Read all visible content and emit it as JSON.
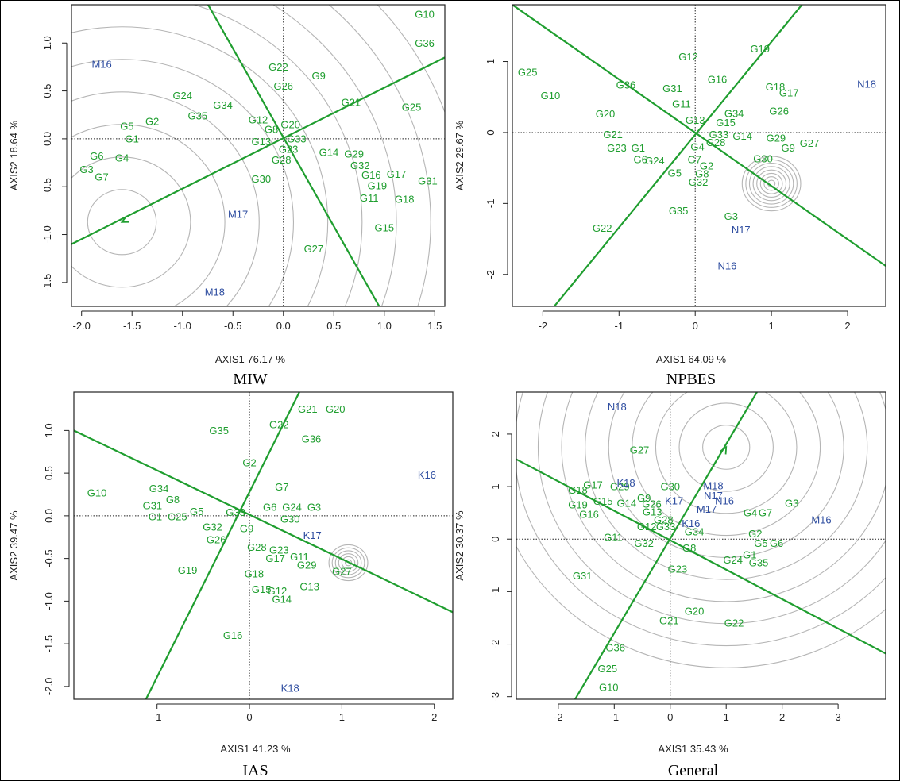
{
  "colors": {
    "genotype": "#1f9e2f",
    "environment": "#2e4da0",
    "line": "#1f9e2f",
    "circle": "#b5b5b5",
    "axis": "#222222"
  },
  "chart_data": [
    {
      "type": "scatter",
      "caption": "MIW",
      "xlabel": "AXIS1 76.17 %",
      "ylabel": "AXIS2 18.64 %",
      "xlim": [
        -2.1,
        1.6
      ],
      "ylim": [
        -1.75,
        1.4
      ],
      "xticks": [
        -2.0,
        -1.5,
        -1.0,
        -0.5,
        0.0,
        0.5,
        1.0,
        1.5
      ],
      "xtick_labels": [
        "-2.0",
        "-1.5",
        "-1.0",
        "-0.5",
        "0.0",
        "0.5",
        "1.0",
        "1.5"
      ],
      "yticks": [
        -1.5,
        -1.0,
        -0.5,
        0.0,
        0.5,
        1.0
      ],
      "ytick_labels": [
        "-1.5",
        "-1.0",
        "-0.5",
        "0.0",
        "0.5",
        "1.0"
      ],
      "center": [
        -1.6,
        -0.87
      ],
      "lines": [
        {
          "points": [
            [
              -2.1,
              -1.1
            ],
            [
              1.6,
              0.85
            ]
          ]
        },
        {
          "points": [
            [
              -0.8,
              1.5
            ],
            [
              0.95,
              -1.75
            ]
          ]
        }
      ],
      "arrow": {
        "from": [
          -1.45,
          -0.79
        ],
        "to": [
          -1.6,
          -0.87
        ]
      },
      "circles": {
        "count": 10,
        "step": 0.34
      },
      "environments": [
        {
          "label": "M16",
          "x": -1.8,
          "y": 0.78
        },
        {
          "label": "M17",
          "x": -0.45,
          "y": -0.79
        },
        {
          "label": "M18",
          "x": -0.68,
          "y": -1.6
        }
      ],
      "genotypes": [
        {
          "label": "G1",
          "x": -1.5,
          "y": 0.0
        },
        {
          "label": "G2",
          "x": -1.3,
          "y": 0.18
        },
        {
          "label": "G3",
          "x": -1.95,
          "y": -0.32
        },
        {
          "label": "G4",
          "x": -1.6,
          "y": -0.2
        },
        {
          "label": "G5",
          "x": -1.55,
          "y": 0.13
        },
        {
          "label": "G6",
          "x": -1.85,
          "y": -0.18
        },
        {
          "label": "G7",
          "x": -1.8,
          "y": -0.4
        },
        {
          "label": "G8",
          "x": -0.12,
          "y": 0.1
        },
        {
          "label": "G9",
          "x": 0.35,
          "y": 0.66
        },
        {
          "label": "G10",
          "x": 1.4,
          "y": 1.3
        },
        {
          "label": "G11",
          "x": 0.85,
          "y": -0.62
        },
        {
          "label": "G12",
          "x": -0.25,
          "y": 0.2
        },
        {
          "label": "G13",
          "x": -0.22,
          "y": -0.03
        },
        {
          "label": "G14",
          "x": 0.45,
          "y": -0.14
        },
        {
          "label": "G15",
          "x": 1.0,
          "y": -0.93
        },
        {
          "label": "G16",
          "x": 0.87,
          "y": -0.38
        },
        {
          "label": "G17",
          "x": 1.12,
          "y": -0.37
        },
        {
          "label": "G18",
          "x": 1.2,
          "y": -0.63
        },
        {
          "label": "G19",
          "x": 0.93,
          "y": -0.49
        },
        {
          "label": "G20",
          "x": 0.07,
          "y": 0.15
        },
        {
          "label": "G21",
          "x": 0.67,
          "y": 0.38
        },
        {
          "label": "G22",
          "x": -0.05,
          "y": 0.75
        },
        {
          "label": "G23",
          "x": 0.05,
          "y": -0.11
        },
        {
          "label": "G24",
          "x": -1.0,
          "y": 0.45
        },
        {
          "label": "G25",
          "x": 1.27,
          "y": 0.33
        },
        {
          "label": "G26",
          "x": 0.0,
          "y": 0.55
        },
        {
          "label": "G27",
          "x": 0.3,
          "y": -1.15
        },
        {
          "label": "G28",
          "x": -0.02,
          "y": -0.22
        },
        {
          "label": "G29",
          "x": 0.7,
          "y": -0.16
        },
        {
          "label": "G30",
          "x": -0.22,
          "y": -0.42
        },
        {
          "label": "G31",
          "x": 1.43,
          "y": -0.44
        },
        {
          "label": "G32",
          "x": 0.76,
          "y": -0.28
        },
        {
          "label": "G33",
          "x": 0.13,
          "y": 0.0
        },
        {
          "label": "G34",
          "x": -0.6,
          "y": 0.35
        },
        {
          "label": "G35",
          "x": -0.85,
          "y": 0.24
        },
        {
          "label": "G36",
          "x": 1.4,
          "y": 1.0
        }
      ]
    },
    {
      "type": "scatter",
      "caption": "NPBES",
      "xlabel": "AXIS1 64.09 %",
      "ylabel": "AXIS2 29.67 %",
      "xlim": [
        -2.4,
        2.5
      ],
      "ylim": [
        -2.45,
        1.8
      ],
      "xticks": [
        -2,
        -1,
        0,
        1,
        2
      ],
      "xtick_labels": [
        "-2",
        "-1",
        "0",
        "1",
        "2"
      ],
      "yticks": [
        -2,
        -1,
        0,
        1
      ],
      "ytick_labels": [
        "-2",
        "-1",
        "0",
        "1"
      ],
      "center": [
        1.0,
        -0.72
      ],
      "lines": [
        {
          "points": [
            [
              -2.4,
              1.8
            ],
            [
              2.5,
              -1.88
            ]
          ]
        },
        {
          "points": [
            [
              -1.85,
              -2.45
            ],
            [
              1.4,
              1.8
            ]
          ]
        }
      ],
      "arrow": null,
      "circles": {
        "count": 8,
        "step": 0.048
      },
      "environments": [
        {
          "label": "N16",
          "x": 0.42,
          "y": -1.88
        },
        {
          "label": "N17",
          "x": 0.6,
          "y": -1.37
        },
        {
          "label": "N18",
          "x": 2.25,
          "y": 0.68
        }
      ],
      "genotypes": [
        {
          "label": "G1",
          "x": -0.75,
          "y": -0.22
        },
        {
          "label": "G2",
          "x": 0.15,
          "y": -0.47
        },
        {
          "label": "G3",
          "x": 0.47,
          "y": -1.18
        },
        {
          "label": "G4",
          "x": 0.03,
          "y": -0.2
        },
        {
          "label": "G5",
          "x": -0.27,
          "y": -0.57
        },
        {
          "label": "G6",
          "x": -0.72,
          "y": -0.38
        },
        {
          "label": "G7",
          "x": -0.01,
          "y": -0.38
        },
        {
          "label": "G9",
          "x": 1.22,
          "y": -0.22
        },
        {
          "label": "G10",
          "x": -1.9,
          "y": 0.52
        },
        {
          "label": "G11",
          "x": -0.18,
          "y": 0.4
        },
        {
          "label": "G12",
          "x": -0.09,
          "y": 1.07
        },
        {
          "label": "G13",
          "x": 0.0,
          "y": 0.17
        },
        {
          "label": "G14",
          "x": 0.62,
          "y": -0.05
        },
        {
          "label": "G15",
          "x": 0.4,
          "y": 0.14
        },
        {
          "label": "G16",
          "x": 0.29,
          "y": 0.75
        },
        {
          "label": "G17",
          "x": 1.23,
          "y": 0.56
        },
        {
          "label": "G18",
          "x": 1.05,
          "y": 0.64
        },
        {
          "label": "G19",
          "x": 0.85,
          "y": 1.18
        },
        {
          "label": "G20",
          "x": -1.18,
          "y": 0.26
        },
        {
          "label": "G21",
          "x": -1.08,
          "y": -0.03
        },
        {
          "label": "G22",
          "x": -1.22,
          "y": -1.35
        },
        {
          "label": "G23",
          "x": -1.03,
          "y": -0.22
        },
        {
          "label": "G24",
          "x": -0.53,
          "y": -0.4
        },
        {
          "label": "G25",
          "x": -2.2,
          "y": 0.85
        },
        {
          "label": "G26",
          "x": 1.1,
          "y": 0.3
        },
        {
          "label": "G27",
          "x": 1.5,
          "y": -0.15
        },
        {
          "label": "G28",
          "x": 0.27,
          "y": -0.14
        },
        {
          "label": "G29",
          "x": 1.06,
          "y": -0.08
        },
        {
          "label": "G30",
          "x": 0.89,
          "y": -0.37
        },
        {
          "label": "G31",
          "x": -0.3,
          "y": 0.62
        },
        {
          "label": "G32",
          "x": 0.04,
          "y": -0.7
        },
        {
          "label": "G33",
          "x": 0.31,
          "y": -0.03
        },
        {
          "label": "G34",
          "x": 0.51,
          "y": 0.27
        },
        {
          "label": "G35",
          "x": -0.22,
          "y": -1.1
        },
        {
          "label": "G36",
          "x": -0.91,
          "y": 0.67
        },
        {
          "label": "G8",
          "x": 0.09,
          "y": -0.58
        }
      ]
    },
    {
      "type": "scatter",
      "caption": "IAS",
      "xlabel": "AXIS1 41.23 %",
      "ylabel": "AXIS2 39.47 %",
      "xlim": [
        -1.9,
        2.2
      ],
      "ylim": [
        -2.15,
        1.45
      ],
      "xticks": [
        -1,
        0,
        1,
        2
      ],
      "xtick_labels": [
        "-1",
        "0",
        "1",
        "2"
      ],
      "yticks": [
        -2.0,
        -1.5,
        -1.0,
        -0.5,
        0.0,
        0.5,
        1.0
      ],
      "ytick_labels": [
        "-2.0",
        "-1.5",
        "-1.0",
        "-0.5",
        "0.0",
        "0.5",
        "1.0"
      ],
      "center": [
        1.07,
        -0.55
      ],
      "lines": [
        {
          "points": [
            [
              -1.9,
              1.0
            ],
            [
              2.2,
              -1.13
            ]
          ]
        },
        {
          "points": [
            [
              -1.12,
              -2.15
            ],
            [
              0.54,
              1.45
            ]
          ]
        }
      ],
      "arrow": null,
      "circles": {
        "count": 6,
        "step": 0.035
      },
      "environments": [
        {
          "label": "K16",
          "x": 1.92,
          "y": 0.48
        },
        {
          "label": "K17",
          "x": 0.68,
          "y": -0.23
        },
        {
          "label": "K18",
          "x": 0.44,
          "y": -2.02
        }
      ],
      "genotypes": [
        {
          "label": "G1",
          "x": -1.02,
          "y": -0.01
        },
        {
          "label": "G2",
          "x": 0.0,
          "y": 0.62
        },
        {
          "label": "G3",
          "x": 0.7,
          "y": 0.1
        },
        {
          "label": "G5",
          "x": -0.57,
          "y": 0.05
        },
        {
          "label": "G6",
          "x": 0.22,
          "y": 0.1
        },
        {
          "label": "G7",
          "x": 0.35,
          "y": 0.34
        },
        {
          "label": "G8",
          "x": -0.83,
          "y": 0.19
        },
        {
          "label": "G9",
          "x": -0.03,
          "y": -0.15
        },
        {
          "label": "G10",
          "x": -1.65,
          "y": 0.27
        },
        {
          "label": "G11",
          "x": 0.54,
          "y": -0.48
        },
        {
          "label": "G12",
          "x": 0.3,
          "y": -0.88
        },
        {
          "label": "G13",
          "x": 0.65,
          "y": -0.83
        },
        {
          "label": "G14",
          "x": 0.35,
          "y": -0.98
        },
        {
          "label": "G15",
          "x": 0.13,
          "y": -0.86
        },
        {
          "label": "G16",
          "x": -0.18,
          "y": -1.4
        },
        {
          "label": "G17",
          "x": 0.28,
          "y": -0.5
        },
        {
          "label": "G18",
          "x": 0.05,
          "y": -0.68
        },
        {
          "label": "G19",
          "x": -0.67,
          "y": -0.64
        },
        {
          "label": "G20",
          "x": 0.93,
          "y": 1.25
        },
        {
          "label": "G21",
          "x": 0.63,
          "y": 1.25
        },
        {
          "label": "G22",
          "x": 0.32,
          "y": 1.07
        },
        {
          "label": "G23",
          "x": 0.32,
          "y": -0.4
        },
        {
          "label": "G24",
          "x": 0.46,
          "y": 0.1
        },
        {
          "label": "G25",
          "x": -0.78,
          "y": -0.01
        },
        {
          "label": "G26",
          "x": -0.36,
          "y": -0.28
        },
        {
          "label": "G27",
          "x": 1.0,
          "y": -0.65
        },
        {
          "label": "G28",
          "x": 0.08,
          "y": -0.37
        },
        {
          "label": "G29",
          "x": 0.62,
          "y": -0.58
        },
        {
          "label": "G30",
          "x": 0.44,
          "y": -0.04
        },
        {
          "label": "G31",
          "x": -1.05,
          "y": 0.12
        },
        {
          "label": "G32",
          "x": -0.4,
          "y": -0.13
        },
        {
          "label": "G33",
          "x": -0.15,
          "y": 0.04
        },
        {
          "label": "G34",
          "x": -0.98,
          "y": 0.32
        },
        {
          "label": "G35",
          "x": -0.33,
          "y": 1.0
        },
        {
          "label": "G36",
          "x": 0.67,
          "y": 0.9
        }
      ]
    },
    {
      "type": "scatter",
      "caption": "General",
      "xlabel": "AXIS1 35.43 %",
      "ylabel": "AXIS2 30.37 %",
      "xlim": [
        -2.75,
        3.85
      ],
      "ylim": [
        -3.05,
        2.8
      ],
      "xticks": [
        -2,
        -1,
        0,
        1,
        2,
        3
      ],
      "xtick_labels": [
        "-2",
        "-1",
        "0",
        "1",
        "2",
        "3"
      ],
      "yticks": [
        -3,
        -2,
        -1,
        0,
        1,
        2
      ],
      "ytick_labels": [
        "-3",
        "-2",
        "-1",
        "0",
        "1",
        "2"
      ],
      "center": [
        1.0,
        1.75
      ],
      "lines": [
        {
          "points": [
            [
              -2.75,
              1.52
            ],
            [
              3.85,
              -2.18
            ]
          ]
        },
        {
          "points": [
            [
              -1.7,
              -3.05
            ],
            [
              1.55,
              2.8
            ]
          ]
        }
      ],
      "arrow": {
        "from": [
          0.93,
          1.62
        ],
        "to": [
          1.0,
          1.75
        ]
      },
      "circles": {
        "count": 10,
        "step": 0.42
      },
      "environments": [
        {
          "label": "M16",
          "x": 2.7,
          "y": 0.37
        },
        {
          "label": "M17",
          "x": 0.65,
          "y": 0.57
        },
        {
          "label": "M18",
          "x": 0.77,
          "y": 1.02
        },
        {
          "label": "N16",
          "x": 0.97,
          "y": 0.73
        },
        {
          "label": "N17",
          "x": 0.77,
          "y": 0.83
        },
        {
          "label": "N18",
          "x": -0.95,
          "y": 2.52
        },
        {
          "label": "K16",
          "x": 0.37,
          "y": 0.3
        },
        {
          "label": "K17",
          "x": 0.07,
          "y": 0.73
        },
        {
          "label": "K18",
          "x": -0.79,
          "y": 1.07
        }
      ],
      "genotypes": [
        {
          "label": "G1",
          "x": 1.42,
          "y": -0.3
        },
        {
          "label": "G2",
          "x": 1.52,
          "y": 0.1
        },
        {
          "label": "G3",
          "x": 2.17,
          "y": 0.68
        },
        {
          "label": "G4",
          "x": 1.43,
          "y": 0.5
        },
        {
          "label": "G5",
          "x": 1.62,
          "y": -0.08
        },
        {
          "label": "G6",
          "x": 1.9,
          "y": -0.08
        },
        {
          "label": "G7",
          "x": 1.7,
          "y": 0.5
        },
        {
          "label": "G8",
          "x": 0.34,
          "y": -0.17
        },
        {
          "label": "G9",
          "x": -0.47,
          "y": 0.78
        },
        {
          "label": "G10",
          "x": -1.1,
          "y": -2.82
        },
        {
          "label": "G11",
          "x": -1.02,
          "y": 0.03
        },
        {
          "label": "G12",
          "x": -0.42,
          "y": 0.24
        },
        {
          "label": "G13",
          "x": -0.32,
          "y": 0.52
        },
        {
          "label": "G14",
          "x": -0.78,
          "y": 0.68
        },
        {
          "label": "G15",
          "x": -1.2,
          "y": 0.72
        },
        {
          "label": "G16",
          "x": -1.45,
          "y": 0.47
        },
        {
          "label": "G17",
          "x": -1.38,
          "y": 1.03
        },
        {
          "label": "G18",
          "x": -1.65,
          "y": 0.93
        },
        {
          "label": "G19",
          "x": -1.65,
          "y": 0.65
        },
        {
          "label": "G20",
          "x": 0.43,
          "y": -1.37
        },
        {
          "label": "G21",
          "x": -0.02,
          "y": -1.55
        },
        {
          "label": "G22",
          "x": 1.14,
          "y": -1.6
        },
        {
          "label": "G23",
          "x": 0.13,
          "y": -0.57
        },
        {
          "label": "G24",
          "x": 1.12,
          "y": -0.4
        },
        {
          "label": "G25",
          "x": -1.12,
          "y": -2.47
        },
        {
          "label": "G26",
          "x": -0.33,
          "y": 0.67
        },
        {
          "label": "G27",
          "x": -0.55,
          "y": 1.7
        },
        {
          "label": "G28",
          "x": -0.12,
          "y": 0.37
        },
        {
          "label": "G29",
          "x": -0.9,
          "y": 1.0
        },
        {
          "label": "G30",
          "x": 0.0,
          "y": 1.0
        },
        {
          "label": "G31",
          "x": -1.57,
          "y": -0.7
        },
        {
          "label": "G32",
          "x": -0.47,
          "y": -0.08
        },
        {
          "label": "G33",
          "x": -0.08,
          "y": 0.24
        },
        {
          "label": "G34",
          "x": 0.43,
          "y": 0.14
        },
        {
          "label": "G35",
          "x": 1.58,
          "y": -0.45
        },
        {
          "label": "G36",
          "x": -0.98,
          "y": -2.07
        }
      ]
    }
  ]
}
